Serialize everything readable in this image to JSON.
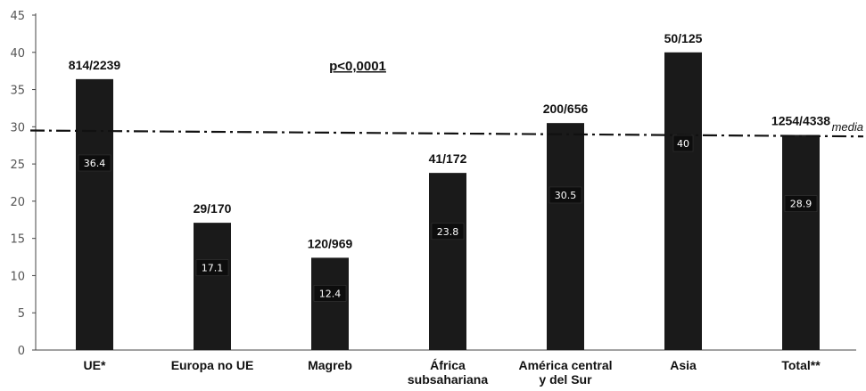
{
  "chart_data": {
    "type": "bar",
    "title": "",
    "xlabel": "",
    "ylabel": "",
    "ylim": [
      0,
      45
    ],
    "yticks": [
      0,
      5,
      10,
      15,
      20,
      25,
      30,
      35,
      40,
      45
    ],
    "grid": false,
    "categories": [
      [
        "UE*"
      ],
      [
        "Europa no UE"
      ],
      [
        "Magreb"
      ],
      [
        "África",
        "subsahariana"
      ],
      [
        "América central",
        "y del Sur"
      ],
      [
        "Asia"
      ],
      [
        "Total**"
      ]
    ],
    "values": [
      36.4,
      17.1,
      12.4,
      23.8,
      30.5,
      40,
      28.9
    ],
    "value_labels": [
      "36.4",
      "17.1",
      "12.4",
      "23.8",
      "30.5",
      "40",
      "28.9"
    ],
    "top_labels": [
      "814/2239",
      "29/170",
      "120/969",
      "41/172",
      "200/656",
      "50/125",
      "1254/4338"
    ],
    "mean_line": {
      "label": "media",
      "value_start": 29.5,
      "value_end": 28.7
    },
    "annotation": "p<0,0001",
    "bar_color": "#1a1a1a"
  }
}
